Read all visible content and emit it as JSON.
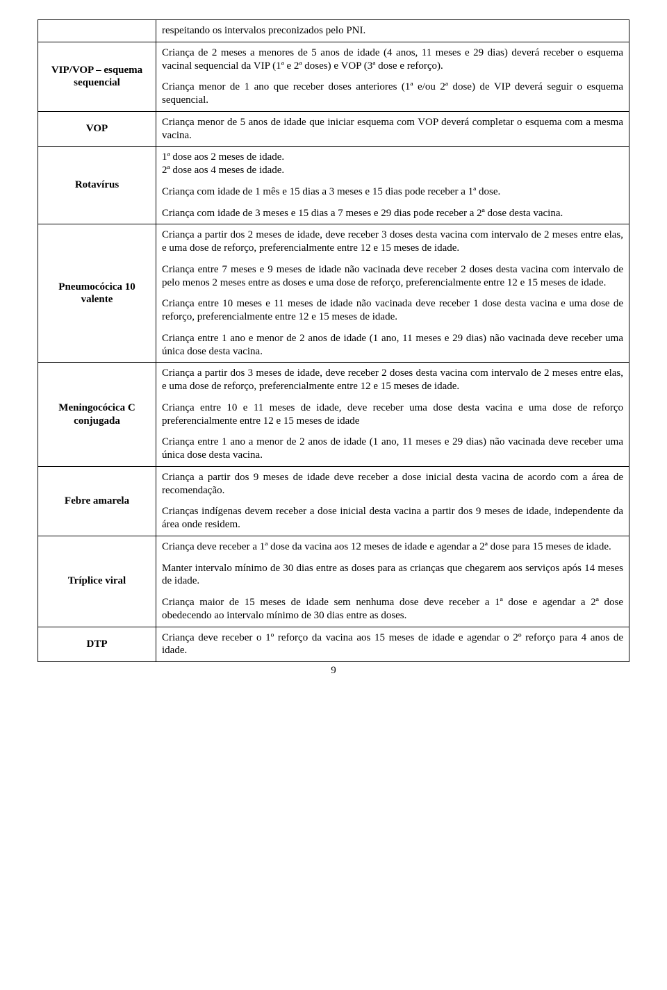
{
  "page_number": "9",
  "rows": [
    {
      "label": "",
      "label_name": "row-intro-label",
      "paragraphs": [
        "respeitando os intervalos preconizados pelo PNI."
      ]
    },
    {
      "label": "VIP/VOP – esquema sequencial",
      "label_name": "row-vip-vop-label",
      "paragraphs": [
        "Criança de 2 meses a menores de 5 anos de idade (4 anos, 11 meses e 29 dias) deverá receber o esquema vacinal sequencial da VIP (1ª e 2ª doses) e VOP (3ª dose e reforço).",
        "Criança menor de 1 ano que receber doses anteriores (1ª e/ou 2ª dose) de VIP deverá seguir o esquema sequencial."
      ]
    },
    {
      "label": "VOP",
      "label_name": "row-vop-label",
      "paragraphs": [
        "Criança menor de 5 anos de idade que iniciar  esquema com VOP deverá completar o esquema com a mesma vacina."
      ]
    },
    {
      "label": "Rotavírus",
      "label_name": "row-rotavirus-label",
      "paragraphs": [
        "1ª dose aos 2 meses de idade.\n2ª dose aos 4 meses de idade.",
        "Criança com idade de 1 mês e 15  dias a 3 meses e 15 dias pode receber a 1ª dose.",
        "Criança com idade de 3 meses e 15 dias a 7 meses e 29 dias pode receber a 2ª dose desta vacina."
      ]
    },
    {
      "label": "Pneumocócica 10 valente",
      "label_name": "row-pneumococica-label",
      "paragraphs": [
        "Criança a partir dos 2 meses de idade, deve receber 3 doses desta vacina com intervalo de 2 meses entre elas, e uma dose de  reforço, preferencialmente entre 12 e 15 meses de idade.",
        "Criança entre 7 meses e 9 meses de idade não vacinada deve receber 2 doses desta vacina com intervalo de pelo menos 2 meses entre as doses e uma dose de reforço, preferencialmente entre 12 e 15 meses de idade.",
        "Criança entre 10 meses e 11 meses de idade não vacinada deve receber 1 dose  desta vacina e uma dose de reforço, preferencialmente entre 12 e 15 meses de idade.",
        "Criança entre 1 ano e menor de 2 anos  de idade (1 ano, 11 meses e 29 dias) não vacinada deve  receber uma única dose desta vacina."
      ]
    },
    {
      "label": "Meningocócica C conjugada",
      "label_name": "row-meningococica-label",
      "paragraphs": [
        "Criança a partir dos 3 meses de idade, deve receber 2 doses desta vacina com intervalo de 2 meses entre elas, e uma dose de  reforço, preferencialmente entre 12 e 15 meses de idade.",
        "Criança entre 10 e 11 meses de idade, deve receber uma dose desta vacina e uma dose de reforço preferencialmente entre 12 e 15 meses de idade",
        "Criança entre 1 ano a menor de  2 anos de idade (1 ano, 11 meses e 29 dias) não vacinada deve  receber uma única dose desta vacina."
      ]
    },
    {
      "label": "Febre amarela",
      "label_name": "row-febre-amarela-label",
      "paragraphs": [
        "Criança a partir dos 9 meses de idade deve receber a dose inicial desta vacina de acordo com a área de recomendação.",
        "Crianças indígenas devem receber a dose inicial desta vacina a partir dos 9 meses de idade, independente da área onde residem."
      ]
    },
    {
      "label": "Tríplice viral",
      "label_name": "row-triplice-viral-label",
      "paragraphs": [
        "Criança deve receber a 1ª dose da vacina aos 12 meses de idade e agendar a 2ª dose para 15 meses de idade.",
        "Manter intervalo mínimo de 30 dias entre as doses para as crianças que chegarem aos serviços após 14 meses de idade.",
        "Criança maior de 15 meses de idade sem nenhuma dose deve receber a 1ª dose e agendar a 2ª dose obedecendo ao intervalo mínimo de 30 dias entre as doses."
      ]
    },
    {
      "label": "DTP",
      "label_name": "row-dtp-label",
      "paragraphs": [
        "Criança deve receber o 1º reforço da vacina aos 15 meses de idade e agendar o 2º reforço para 4 anos de idade."
      ]
    }
  ]
}
